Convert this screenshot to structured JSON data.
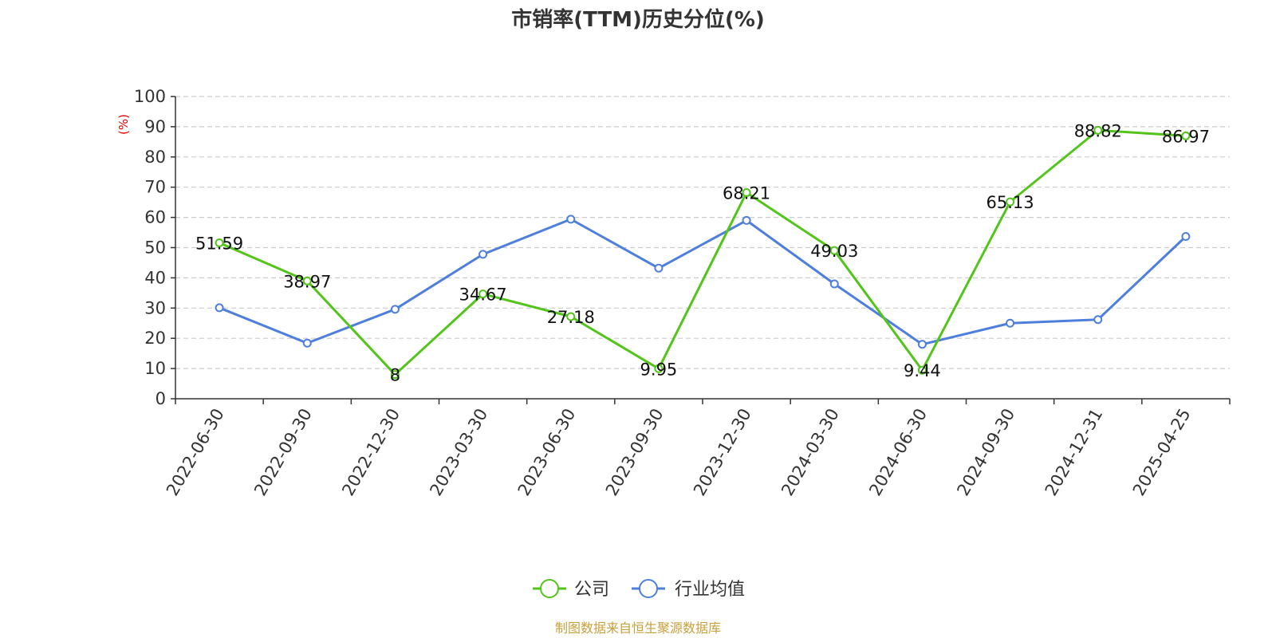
{
  "chart_data": {
    "type": "line",
    "title": "市销率(TTM)历史分位(%)",
    "ylabel": "(%)",
    "xlabel": "",
    "ylim": [
      0,
      100
    ],
    "yticks": [
      0,
      10,
      20,
      30,
      40,
      50,
      60,
      70,
      80,
      90,
      100
    ],
    "grid": true,
    "legend_position": "bottom-center",
    "categories": [
      "2022-06-30",
      "2022-09-30",
      "2022-12-30",
      "2023-03-30",
      "2023-06-30",
      "2023-09-30",
      "2023-12-30",
      "2024-03-30",
      "2024-06-30",
      "2024-09-30",
      "2024-12-31",
      "2025-04-25"
    ],
    "series": [
      {
        "name": "公司",
        "color": "#52c41a",
        "values": [
          51.59,
          38.97,
          8,
          34.67,
          27.18,
          9.95,
          68.21,
          49.03,
          9.44,
          65.13,
          88.82,
          86.97
        ],
        "labels": [
          "51.59",
          "38.97",
          "8",
          "34.67",
          "27.18",
          "9.95",
          "68.21",
          "49.03",
          "9.44",
          "65.13",
          "88.82",
          "86.97"
        ]
      },
      {
        "name": "行业均值",
        "color": "#4e7fdc",
        "values": [
          30.1,
          18.4,
          29.6,
          47.8,
          59.4,
          43.2,
          59.0,
          38.0,
          18.0,
          25.0,
          26.2,
          53.7
        ]
      }
    ]
  },
  "footer": {
    "source": "制图数据来自恒生聚源数据库"
  }
}
